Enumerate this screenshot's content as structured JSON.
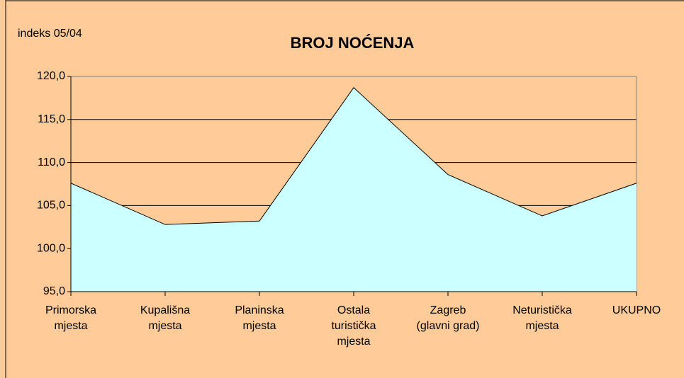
{
  "chart_data": {
    "type": "area",
    "title": "BROJ NOĆENJA",
    "subtitle": "indeks 05/04",
    "categories": [
      "Primorska\nmjesta",
      "Kupališna\nmjesta",
      "Planinska\nmjesta",
      "Ostala\nturistička\nmjesta",
      "Zagreb\n(glavni grad)",
      "Neturistička\nmjesta",
      "UKUPNO"
    ],
    "values": [
      107.6,
      102.8,
      103.2,
      118.7,
      108.6,
      103.8,
      107.6
    ],
    "color": "#ccffff",
    "ylim": [
      95,
      120
    ],
    "yticks": [
      {
        "value": 95,
        "label": "95,0"
      },
      {
        "value": 100,
        "label": "100,0"
      },
      {
        "value": 105,
        "label": "105,0"
      },
      {
        "value": 110,
        "label": "110,0"
      },
      {
        "value": 115,
        "label": "115,0"
      },
      {
        "value": 120,
        "label": "120,0"
      }
    ],
    "grid": true
  }
}
